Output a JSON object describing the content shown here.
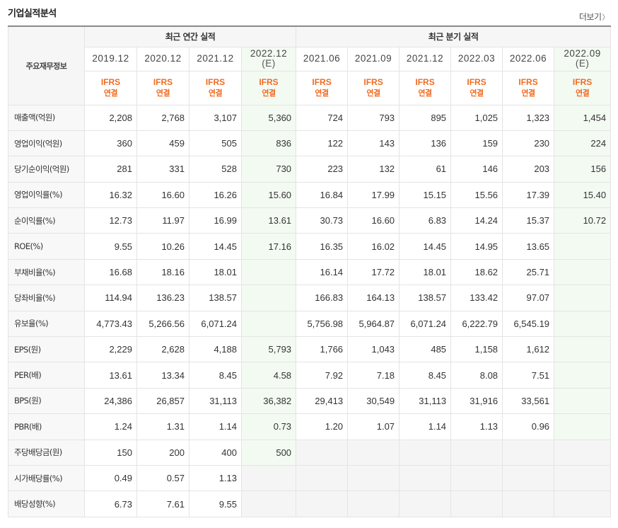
{
  "header": {
    "title": "기업실적분석",
    "more_label": "더보기",
    "more_arrow": "〉"
  },
  "table": {
    "row_header_label": "주요재무정보",
    "annual_group_label": "최근 연간 실적",
    "quarterly_group_label": "최근 분기 실적",
    "periods": [
      {
        "line1": "2019.12",
        "line2": ""
      },
      {
        "line1": "2020.12",
        "line2": ""
      },
      {
        "line1": "2021.12",
        "line2": ""
      },
      {
        "line1": "2022.12",
        "line2": "(E)"
      },
      {
        "line1": "2021.06",
        "line2": ""
      },
      {
        "line1": "2021.09",
        "line2": ""
      },
      {
        "line1": "2021.12",
        "line2": ""
      },
      {
        "line1": "2022.03",
        "line2": ""
      },
      {
        "line1": "2022.06",
        "line2": ""
      },
      {
        "line1": "2022.09",
        "line2": "(E)"
      }
    ],
    "ifrs_line1": "IFRS",
    "ifrs_line2": "연결",
    "rows": [
      {
        "label": "매출액(억원)",
        "values": [
          "2,208",
          "2,768",
          "3,107",
          "5,360",
          "724",
          "793",
          "895",
          "1,025",
          "1,323",
          "1,454"
        ]
      },
      {
        "label": "영업이익(억원)",
        "values": [
          "360",
          "459",
          "505",
          "836",
          "122",
          "143",
          "136",
          "159",
          "230",
          "224"
        ]
      },
      {
        "label": "당기순이익(억원)",
        "values": [
          "281",
          "331",
          "528",
          "730",
          "223",
          "132",
          "61",
          "146",
          "203",
          "156"
        ]
      },
      {
        "label": "영업이익률(%)",
        "values": [
          "16.32",
          "16.60",
          "16.26",
          "15.60",
          "16.84",
          "17.99",
          "15.15",
          "15.56",
          "17.39",
          "15.40"
        ]
      },
      {
        "label": "순이익률(%)",
        "values": [
          "12.73",
          "11.97",
          "16.99",
          "13.61",
          "30.73",
          "16.60",
          "6.83",
          "14.24",
          "15.37",
          "10.72"
        ]
      },
      {
        "label": "ROE(%)",
        "values": [
          "9.55",
          "10.26",
          "14.45",
          "17.16",
          "16.35",
          "16.02",
          "14.45",
          "14.95",
          "13.65",
          ""
        ]
      },
      {
        "label": "부채비율(%)",
        "values": [
          "16.68",
          "18.16",
          "18.01",
          "",
          "16.14",
          "17.72",
          "18.01",
          "18.62",
          "25.71",
          ""
        ]
      },
      {
        "label": "당좌비율(%)",
        "values": [
          "114.94",
          "136.23",
          "138.57",
          "",
          "166.83",
          "164.13",
          "138.57",
          "133.42",
          "97.07",
          ""
        ]
      },
      {
        "label": "유보율(%)",
        "values": [
          "4,773.43",
          "5,266.56",
          "6,071.24",
          "",
          "5,756.98",
          "5,964.87",
          "6,071.24",
          "6,222.79",
          "6,545.19",
          ""
        ]
      },
      {
        "label": "EPS(원)",
        "values": [
          "2,229",
          "2,628",
          "4,188",
          "5,793",
          "1,766",
          "1,043",
          "485",
          "1,158",
          "1,612",
          ""
        ]
      },
      {
        "label": "PER(배)",
        "values": [
          "13.61",
          "13.34",
          "8.45",
          "4.58",
          "7.92",
          "7.18",
          "8.45",
          "8.08",
          "7.51",
          ""
        ]
      },
      {
        "label": "BPS(원)",
        "values": [
          "24,386",
          "26,857",
          "31,113",
          "36,382",
          "29,413",
          "30,549",
          "31,113",
          "31,916",
          "33,561",
          ""
        ]
      },
      {
        "label": "PBR(배)",
        "values": [
          "1.24",
          "1.31",
          "1.14",
          "0.73",
          "1.20",
          "1.07",
          "1.14",
          "1.13",
          "0.96",
          ""
        ]
      },
      {
        "label": "주당배당금(원)",
        "values": [
          "150",
          "200",
          "400",
          "500",
          "",
          "",
          "",
          "",
          "",
          ""
        ]
      },
      {
        "label": "시가배당률(%)",
        "values": [
          "0.49",
          "0.57",
          "1.13",
          "",
          "",
          "",
          "",
          "",
          "",
          ""
        ]
      },
      {
        "label": "배당성향(%)",
        "values": [
          "6.73",
          "7.61",
          "9.55",
          "",
          "",
          "",
          "",
          "",
          "",
          ""
        ]
      }
    ]
  }
}
